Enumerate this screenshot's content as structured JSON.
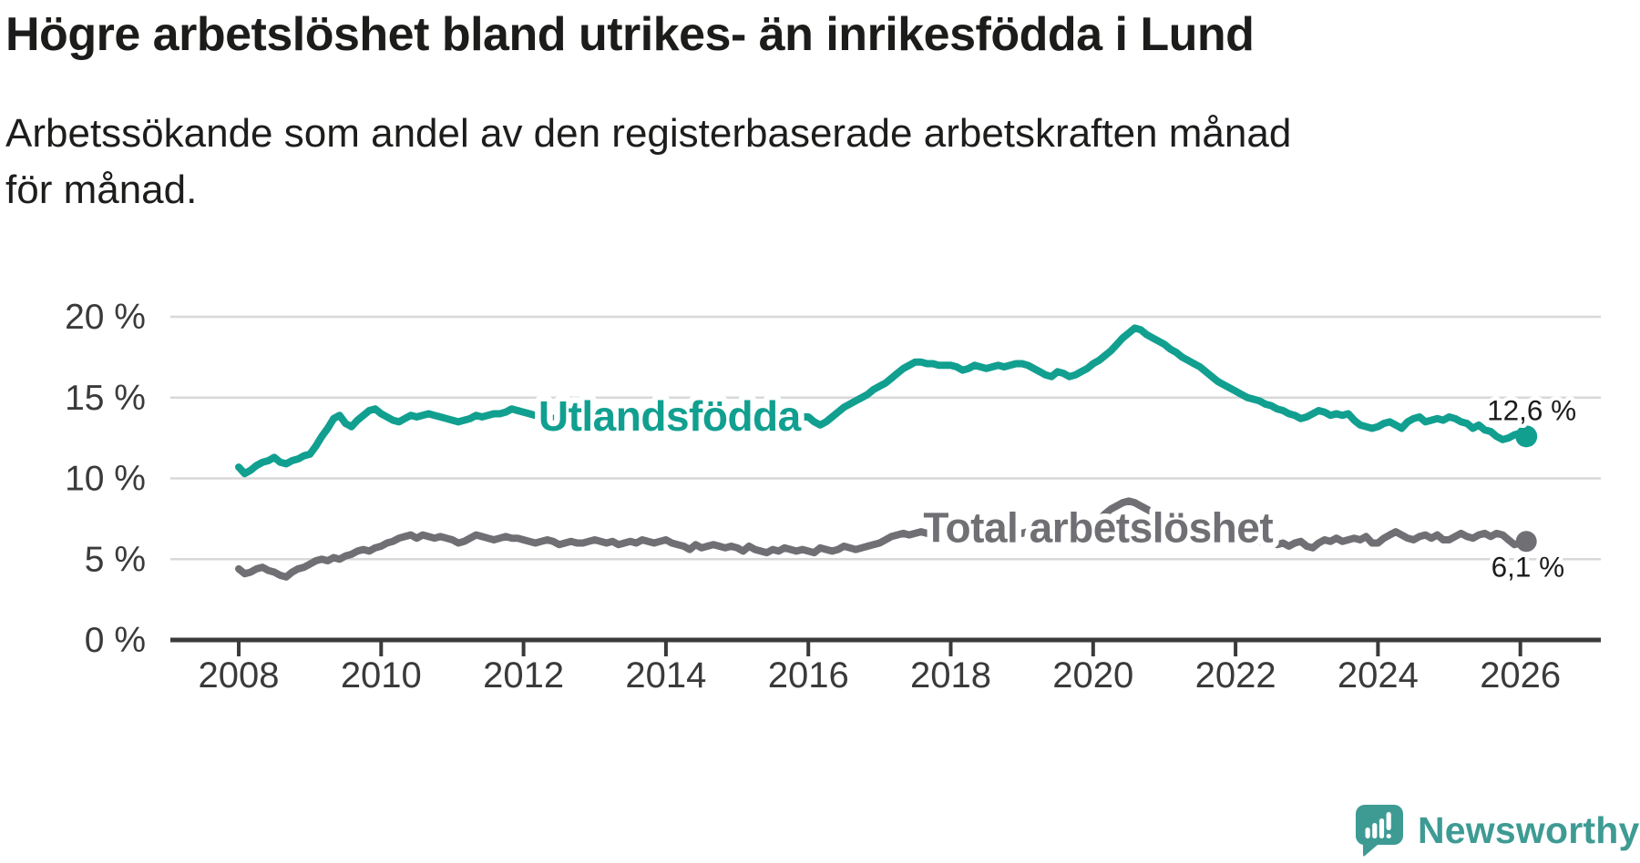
{
  "chart_data": {
    "type": "line",
    "title": "Högre arbetslöshet bland utrikes- än inrikesfödda i Lund",
    "subtitle": "Arbetssökande som andel av den registerbaserade arbetskraften månad för månad.",
    "x_start_year": 2008,
    "points_per_year": 12,
    "xlim": [
      2007.04,
      2027.13
    ],
    "ylim": [
      0,
      20
    ],
    "grid": "horizontal",
    "legend_position": "inline-labels",
    "x_ticks": [
      {
        "value": 2008,
        "label": "2008"
      },
      {
        "value": 2010,
        "label": "2010"
      },
      {
        "value": 2012,
        "label": "2012"
      },
      {
        "value": 2014,
        "label": "2014"
      },
      {
        "value": 2016,
        "label": "2016"
      },
      {
        "value": 2018,
        "label": "2018"
      },
      {
        "value": 2020,
        "label": "2020"
      },
      {
        "value": 2022,
        "label": "2022"
      },
      {
        "value": 2024,
        "label": "2024"
      },
      {
        "value": 2026,
        "label": "2026"
      }
    ],
    "y_ticks": [
      {
        "value": 0,
        "label": "0 %"
      },
      {
        "value": 5,
        "label": "5 %"
      },
      {
        "value": 10,
        "label": "10 %"
      },
      {
        "value": 15,
        "label": "15 %"
      },
      {
        "value": 20,
        "label": "20 %"
      }
    ],
    "colors": {
      "grid": "#d8d8d8",
      "axis": "#3a3a3a",
      "tick_text": "#3a3a3a",
      "title_text": "#1c1c1b",
      "value_label_text": "#1c1c1b"
    },
    "series": [
      {
        "name": "Utlandsfödda",
        "color": "#119f90",
        "inline_label": {
          "text": "Utlandsfödda",
          "x": 2014.05,
          "y": 13.85
        },
        "end_label": "12,6 %",
        "values": [
          10.7,
          10.3,
          10.5,
          10.8,
          11.0,
          11.1,
          11.3,
          11.0,
          10.9,
          11.1,
          11.2,
          11.4,
          11.5,
          12.0,
          12.6,
          13.1,
          13.7,
          13.9,
          13.4,
          13.2,
          13.6,
          13.9,
          14.2,
          14.3,
          14.0,
          13.8,
          13.6,
          13.5,
          13.7,
          13.9,
          13.8,
          13.9,
          14.0,
          13.9,
          13.8,
          13.7,
          13.6,
          13.5,
          13.6,
          13.7,
          13.9,
          13.8,
          13.9,
          14.0,
          14.0,
          14.1,
          14.3,
          14.2,
          14.1,
          14.0,
          13.9,
          13.9,
          13.8,
          13.7,
          13.8,
          13.9,
          13.8,
          13.7,
          13.8,
          13.9,
          13.9,
          13.8,
          13.7,
          13.8,
          13.9,
          14.0,
          13.9,
          13.8,
          13.7,
          13.8,
          13.9,
          13.8,
          13.7,
          13.8,
          13.9,
          14.0,
          13.9,
          13.8,
          13.7,
          13.8,
          13.9,
          13.8,
          13.7,
          13.8,
          13.9,
          14.0,
          13.9,
          13.8,
          13.7,
          13.6,
          13.7,
          13.8,
          13.9,
          14.0,
          13.9,
          13.8,
          13.8,
          13.5,
          13.3,
          13.5,
          13.8,
          14.1,
          14.4,
          14.6,
          14.8,
          15.0,
          15.2,
          15.5,
          15.7,
          15.9,
          16.2,
          16.5,
          16.8,
          17.0,
          17.2,
          17.2,
          17.1,
          17.1,
          17.0,
          17.0,
          17.0,
          16.9,
          16.7,
          16.8,
          17.0,
          16.9,
          16.8,
          16.9,
          17.0,
          16.9,
          17.0,
          17.1,
          17.1,
          17.0,
          16.8,
          16.6,
          16.4,
          16.3,
          16.6,
          16.5,
          16.3,
          16.4,
          16.6,
          16.8,
          17.1,
          17.3,
          17.6,
          17.9,
          18.3,
          18.7,
          19.0,
          19.3,
          19.2,
          18.9,
          18.7,
          18.5,
          18.3,
          18.0,
          17.8,
          17.5,
          17.3,
          17.1,
          16.9,
          16.6,
          16.3,
          16.0,
          15.8,
          15.6,
          15.4,
          15.2,
          15.0,
          14.9,
          14.8,
          14.6,
          14.5,
          14.3,
          14.2,
          14.0,
          13.9,
          13.7,
          13.8,
          14.0,
          14.2,
          14.1,
          13.9,
          14.0,
          13.9,
          14.0,
          13.6,
          13.3,
          13.2,
          13.1,
          13.2,
          13.4,
          13.5,
          13.3,
          13.1,
          13.5,
          13.7,
          13.8,
          13.5,
          13.6,
          13.7,
          13.6,
          13.8,
          13.7,
          13.5,
          13.4,
          13.1,
          13.3,
          13.0,
          12.9,
          12.6,
          12.4,
          12.5,
          12.7,
          12.8,
          12.6
        ]
      },
      {
        "name": "Total arbetslöshet",
        "color": "#6f6f74",
        "inline_label": {
          "text": "Total arbetslöshet",
          "x": 2020.07,
          "y": 6.95
        },
        "end_label": "6,1 %",
        "values": [
          4.4,
          4.1,
          4.2,
          4.4,
          4.5,
          4.3,
          4.2,
          4.0,
          3.9,
          4.2,
          4.4,
          4.5,
          4.7,
          4.9,
          5.0,
          4.9,
          5.1,
          5.0,
          5.2,
          5.3,
          5.5,
          5.6,
          5.5,
          5.7,
          5.8,
          6.0,
          6.1,
          6.3,
          6.4,
          6.5,
          6.3,
          6.5,
          6.4,
          6.3,
          6.4,
          6.3,
          6.2,
          6.0,
          6.1,
          6.3,
          6.5,
          6.4,
          6.3,
          6.2,
          6.3,
          6.4,
          6.3,
          6.3,
          6.2,
          6.1,
          6.0,
          6.1,
          6.2,
          6.1,
          5.9,
          6.0,
          6.1,
          6.0,
          6.0,
          6.1,
          6.2,
          6.1,
          6.0,
          6.1,
          5.9,
          6.0,
          6.1,
          6.0,
          6.2,
          6.1,
          6.0,
          6.1,
          6.2,
          6.0,
          5.9,
          5.8,
          5.6,
          5.9,
          5.7,
          5.8,
          5.9,
          5.8,
          5.7,
          5.8,
          5.7,
          5.5,
          5.8,
          5.6,
          5.5,
          5.4,
          5.6,
          5.5,
          5.7,
          5.6,
          5.5,
          5.6,
          5.5,
          5.4,
          5.7,
          5.6,
          5.5,
          5.6,
          5.8,
          5.7,
          5.6,
          5.7,
          5.8,
          5.9,
          6.0,
          6.2,
          6.4,
          6.5,
          6.6,
          6.5,
          6.6,
          6.7,
          6.6,
          6.5,
          6.6,
          6.7,
          6.6,
          6.5,
          6.6,
          6.7,
          6.6,
          6.5,
          6.6,
          6.7,
          6.6,
          6.7,
          6.8,
          6.7,
          6.6,
          6.7,
          6.8,
          6.7,
          6.8,
          6.9,
          6.8,
          6.9,
          7.0,
          6.9,
          7.0,
          7.1,
          7.2,
          7.4,
          7.8,
          8.1,
          8.3,
          8.5,
          8.6,
          8.5,
          8.3,
          8.1,
          7.9,
          7.8,
          7.7,
          7.5,
          7.4,
          7.2,
          7.1,
          7.0,
          6.9,
          6.8,
          6.7,
          6.6,
          6.5,
          6.4,
          6.4,
          6.3,
          6.2,
          6.2,
          6.1,
          6.0,
          6.1,
          5.9,
          6.0,
          5.8,
          6.0,
          6.1,
          5.8,
          5.7,
          6.0,
          6.2,
          6.1,
          6.3,
          6.1,
          6.2,
          6.3,
          6.2,
          6.4,
          6.0,
          6.0,
          6.3,
          6.5,
          6.7,
          6.5,
          6.3,
          6.2,
          6.4,
          6.5,
          6.3,
          6.5,
          6.2,
          6.2,
          6.4,
          6.6,
          6.4,
          6.3,
          6.5,
          6.6,
          6.4,
          6.6,
          6.5,
          6.2,
          5.9,
          6.0,
          6.1
        ]
      }
    ]
  },
  "branding": {
    "logo_text": "Newsworthy",
    "logo_color": "#3e9b94",
    "logo_icon": "newsworthy-speech-bubble-bar-chart-icon"
  }
}
